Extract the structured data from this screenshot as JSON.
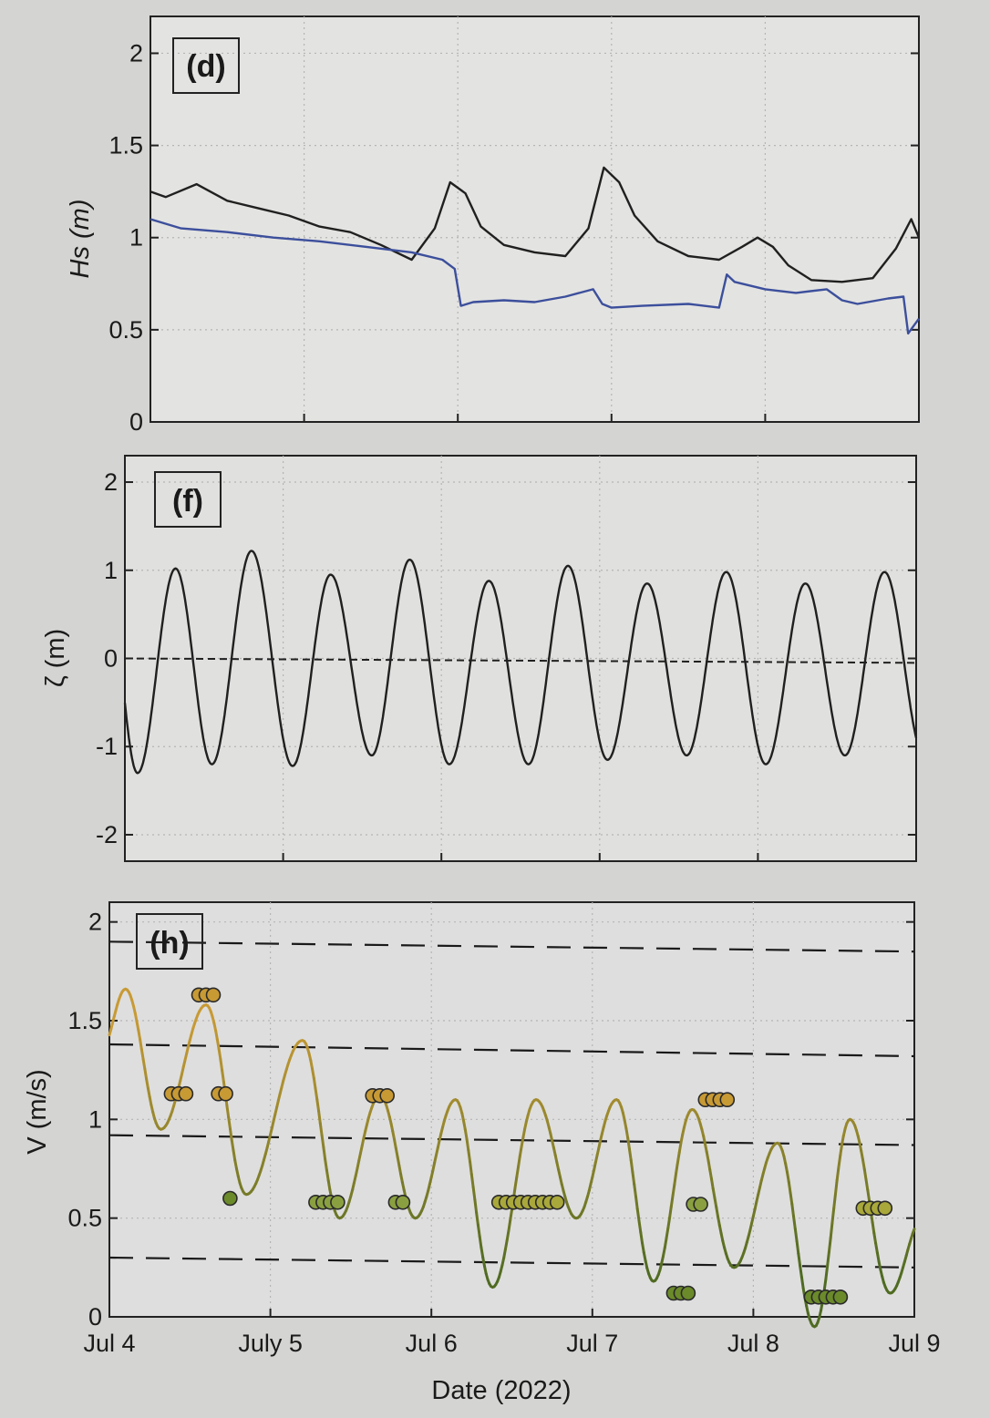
{
  "chart_data": [
    {
      "type": "line",
      "panel_label": "(d)",
      "ylabel": "Hs (m)",
      "ylim": [
        0,
        2.2
      ],
      "yticks": [
        "0",
        "0.5",
        "1",
        "1.5",
        "2"
      ],
      "xlim": [
        "2022-07-04",
        "2022-07-09"
      ],
      "grid": true,
      "series": [
        {
          "color": "#202020",
          "x": [
            0,
            0.1,
            0.3,
            0.5,
            0.7,
            0.9,
            1.1,
            1.3,
            1.5,
            1.7,
            1.85,
            1.95,
            2.05,
            2.15,
            2.3,
            2.5,
            2.7,
            2.85,
            2.95,
            3.05,
            3.15,
            3.3,
            3.5,
            3.7,
            3.85,
            3.95,
            4.05,
            4.15,
            4.3,
            4.5,
            4.7,
            4.85,
            4.95,
            5.0
          ],
          "y": [
            1.25,
            1.22,
            1.29,
            1.2,
            1.16,
            1.12,
            1.06,
            1.03,
            0.96,
            0.88,
            1.05,
            1.3,
            1.24,
            1.06,
            0.96,
            0.92,
            0.9,
            1.05,
            1.38,
            1.3,
            1.12,
            0.98,
            0.9,
            0.88,
            0.95,
            1.0,
            0.95,
            0.85,
            0.77,
            0.76,
            0.78,
            0.94,
            1.1,
            1.0
          ]
        },
        {
          "color": "#3c4f9c",
          "x": [
            0,
            0.2,
            0.5,
            0.8,
            1.1,
            1.4,
            1.7,
            1.9,
            1.98,
            2.02,
            2.1,
            2.3,
            2.5,
            2.7,
            2.88,
            2.94,
            3.0,
            3.2,
            3.5,
            3.7,
            3.75,
            3.8,
            4.0,
            4.2,
            4.4,
            4.5,
            4.6,
            4.8,
            4.9,
            4.93,
            5.0
          ],
          "y": [
            1.1,
            1.05,
            1.03,
            1.0,
            0.98,
            0.95,
            0.92,
            0.88,
            0.83,
            0.63,
            0.65,
            0.66,
            0.65,
            0.68,
            0.72,
            0.64,
            0.62,
            0.63,
            0.64,
            0.62,
            0.8,
            0.76,
            0.72,
            0.7,
            0.72,
            0.66,
            0.64,
            0.67,
            0.68,
            0.48,
            0.56
          ]
        }
      ]
    },
    {
      "type": "line",
      "panel_label": "(f)",
      "ylabel": "ζ (m)",
      "ylim": [
        -2.3,
        2.3
      ],
      "yticks": [
        "-2",
        "-1",
        "0",
        "1",
        "2"
      ],
      "xlim": [
        "2022-07-04",
        "2022-07-09"
      ],
      "grid": true,
      "series": [
        {
          "color": "#202020",
          "description_note": "semidiurnal tide",
          "extrema_x": [
            -0.12,
            0.08,
            0.32,
            0.55,
            0.8,
            1.06,
            1.3,
            1.56,
            1.8,
            2.05,
            2.3,
            2.55,
            2.8,
            3.05,
            3.3,
            3.55,
            3.8,
            4.05,
            4.3,
            4.55,
            4.8,
            5.05
          ],
          "extrema_y": [
            1.0,
            -1.3,
            1.02,
            -1.2,
            1.22,
            -1.22,
            0.95,
            -1.1,
            1.12,
            -1.2,
            0.88,
            -1.2,
            1.05,
            -1.15,
            0.85,
            -1.1,
            0.98,
            -1.2,
            0.85,
            -1.1,
            0.98,
            -1.1
          ]
        },
        {
          "color": "#202020",
          "dashed": true,
          "x": [
            0,
            5
          ],
          "y": [
            0.0,
            -0.05
          ]
        }
      ]
    },
    {
      "type": "line",
      "panel_label": "(h)",
      "ylabel": "V (m/s)",
      "xlabel": "Date (2022)",
      "ylim": [
        0,
        2.1
      ],
      "yticks": [
        "0",
        "0.5",
        "1",
        "1.5",
        "2"
      ],
      "xticks": [
        "Jul 4",
        "July 5",
        "Jul 6",
        "Jul 7",
        "Jul 8",
        "Jul 9"
      ],
      "xlim": [
        "2022-07-04",
        "2022-07-09"
      ],
      "grid": true,
      "thresholds": [
        {
          "y0": 1.9,
          "y1": 1.85
        },
        {
          "y0": 1.38,
          "y1": 1.32
        },
        {
          "y0": 0.92,
          "y1": 0.87
        },
        {
          "y0": 0.3,
          "y1": 0.25
        }
      ],
      "series": [
        {
          "color_low": "#4f6b22",
          "color_high": "#c89a34",
          "extrema_x": [
            -0.05,
            0.1,
            0.32,
            0.6,
            0.85,
            1.2,
            1.43,
            1.68,
            1.9,
            2.15,
            2.38,
            2.65,
            2.9,
            3.15,
            3.38,
            3.62,
            3.88,
            4.15,
            4.38,
            4.6,
            4.85,
            5.05
          ],
          "extrema_y": [
            1.35,
            1.66,
            0.95,
            1.58,
            0.62,
            1.4,
            0.5,
            1.12,
            0.5,
            1.1,
            0.15,
            1.1,
            0.5,
            1.1,
            0.18,
            1.05,
            0.25,
            0.88,
            -0.05,
            1.0,
            0.12,
            0.5
          ]
        }
      ],
      "markers": [
        {
          "x": 0.43,
          "y": 1.13,
          "n": 3,
          "color": "#c89a34"
        },
        {
          "x": 0.6,
          "y": 1.63,
          "n": 3,
          "color": "#c89a34"
        },
        {
          "x": 0.7,
          "y": 1.13,
          "n": 2,
          "color": "#c89a34"
        },
        {
          "x": 0.75,
          "y": 0.6,
          "n": 1,
          "color": "#6b8a2a"
        },
        {
          "x": 1.35,
          "y": 0.58,
          "n": 4,
          "color": "#8aa040"
        },
        {
          "x": 1.68,
          "y": 1.12,
          "n": 3,
          "color": "#c89a34"
        },
        {
          "x": 1.8,
          "y": 0.58,
          "n": 2,
          "color": "#8aa040"
        },
        {
          "x": 2.6,
          "y": 0.58,
          "n": 9,
          "color": "#a9a83a"
        },
        {
          "x": 3.55,
          "y": 0.12,
          "n": 3,
          "color": "#6b8a2a"
        },
        {
          "x": 3.65,
          "y": 0.57,
          "n": 2,
          "color": "#8aa040"
        },
        {
          "x": 3.77,
          "y": 1.1,
          "n": 4,
          "color": "#c89a34"
        },
        {
          "x": 4.45,
          "y": 0.1,
          "n": 5,
          "color": "#6b8a2a"
        },
        {
          "x": 4.75,
          "y": 0.55,
          "n": 4,
          "color": "#a9a83a"
        }
      ]
    }
  ]
}
